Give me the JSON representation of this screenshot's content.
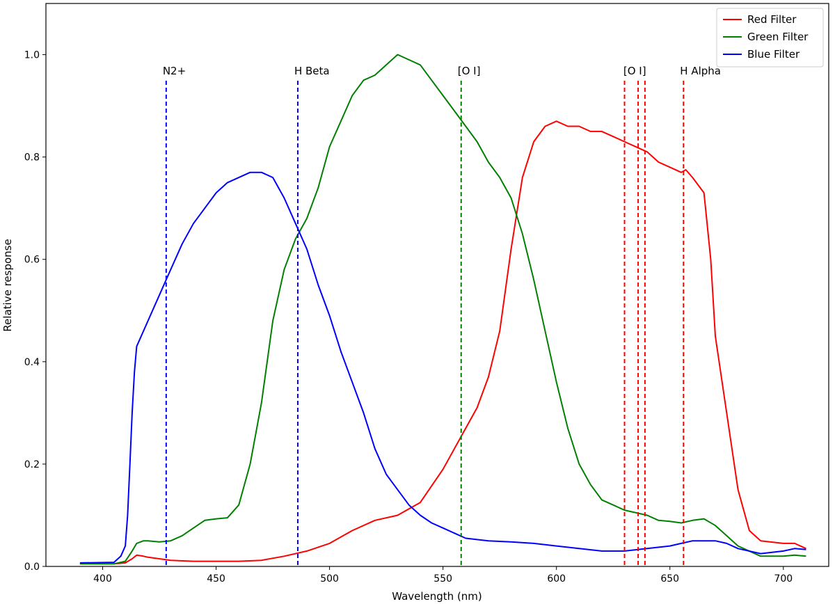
{
  "chart_data": {
    "type": "line",
    "title": "",
    "xlabel": "Wavelength (nm)",
    "ylabel": "Relative response",
    "xlim": [
      375,
      720
    ],
    "ylim": [
      0,
      1.1
    ],
    "x_ticks": [
      400,
      450,
      500,
      550,
      600,
      650,
      700
    ],
    "x_tick_labels": [
      "400",
      "450",
      "500",
      "550",
      "600",
      "650",
      "700"
    ],
    "y_ticks": [
      0.0,
      0.2,
      0.4,
      0.6,
      0.8,
      1.0
    ],
    "y_tick_labels": [
      "0.0",
      "0.2",
      "0.4",
      "0.6",
      "0.8",
      "1.0"
    ],
    "grid": false,
    "legend_position": "top-right",
    "series": [
      {
        "name": "Red Filter",
        "color": "#ff0000",
        "x": [
          390,
          405,
          410,
          413,
          415,
          418,
          420,
          425,
          430,
          440,
          450,
          460,
          470,
          480,
          490,
          500,
          510,
          520,
          530,
          540,
          550,
          555,
          560,
          565,
          570,
          575,
          580,
          585,
          590,
          595,
          600,
          605,
          610,
          615,
          620,
          625,
          630,
          635,
          640,
          645,
          650,
          655,
          657,
          660,
          665,
          668,
          670,
          675,
          680,
          685,
          690,
          700,
          705,
          710
        ],
        "y": [
          0.005,
          0.005,
          0.007,
          0.015,
          0.022,
          0.02,
          0.018,
          0.015,
          0.012,
          0.01,
          0.01,
          0.01,
          0.012,
          0.02,
          0.03,
          0.045,
          0.07,
          0.09,
          0.1,
          0.125,
          0.19,
          0.23,
          0.27,
          0.31,
          0.37,
          0.46,
          0.62,
          0.76,
          0.83,
          0.86,
          0.87,
          0.86,
          0.86,
          0.85,
          0.85,
          0.84,
          0.83,
          0.82,
          0.81,
          0.79,
          0.78,
          0.77,
          0.775,
          0.76,
          0.73,
          0.6,
          0.45,
          0.3,
          0.15,
          0.07,
          0.05,
          0.045,
          0.045,
          0.035
        ]
      },
      {
        "name": "Green Filter",
        "color": "#008000",
        "x": [
          390,
          405,
          410,
          413,
          415,
          418,
          420,
          425,
          430,
          435,
          440,
          445,
          450,
          455,
          460,
          465,
          470,
          475,
          480,
          485,
          490,
          495,
          500,
          505,
          510,
          515,
          520,
          525,
          530,
          535,
          540,
          545,
          550,
          555,
          560,
          565,
          570,
          575,
          580,
          585,
          590,
          595,
          600,
          605,
          610,
          615,
          620,
          625,
          630,
          640,
          645,
          650,
          655,
          660,
          665,
          670,
          675,
          680,
          690,
          700,
          705,
          710
        ],
        "y": [
          0.005,
          0.005,
          0.01,
          0.03,
          0.045,
          0.05,
          0.05,
          0.048,
          0.05,
          0.06,
          0.075,
          0.09,
          0.093,
          0.095,
          0.12,
          0.2,
          0.32,
          0.48,
          0.58,
          0.64,
          0.68,
          0.74,
          0.82,
          0.87,
          0.92,
          0.95,
          0.96,
          0.98,
          1.0,
          0.99,
          0.98,
          0.95,
          0.92,
          0.89,
          0.86,
          0.83,
          0.79,
          0.76,
          0.72,
          0.65,
          0.56,
          0.46,
          0.36,
          0.27,
          0.2,
          0.16,
          0.13,
          0.12,
          0.11,
          0.1,
          0.09,
          0.088,
          0.085,
          0.09,
          0.093,
          0.08,
          0.06,
          0.04,
          0.02,
          0.02,
          0.022,
          0.02
        ]
      },
      {
        "name": "Blue Filter",
        "color": "#0000ff",
        "x": [
          390,
          405,
          408,
          410,
          411,
          412,
          413,
          414,
          415,
          420,
          425,
          430,
          435,
          440,
          445,
          450,
          455,
          460,
          465,
          470,
          475,
          480,
          485,
          490,
          495,
          500,
          505,
          510,
          515,
          520,
          525,
          530,
          535,
          540,
          545,
          550,
          555,
          560,
          570,
          580,
          590,
          600,
          610,
          620,
          630,
          640,
          650,
          655,
          660,
          665,
          670,
          675,
          680,
          690,
          700,
          705,
          710
        ],
        "y": [
          0.007,
          0.008,
          0.02,
          0.04,
          0.1,
          0.2,
          0.3,
          0.38,
          0.43,
          0.48,
          0.53,
          0.58,
          0.63,
          0.67,
          0.7,
          0.73,
          0.75,
          0.76,
          0.77,
          0.77,
          0.76,
          0.72,
          0.67,
          0.62,
          0.55,
          0.49,
          0.42,
          0.36,
          0.3,
          0.23,
          0.18,
          0.15,
          0.12,
          0.1,
          0.085,
          0.075,
          0.065,
          0.055,
          0.05,
          0.048,
          0.045,
          0.04,
          0.035,
          0.03,
          0.03,
          0.035,
          0.04,
          0.045,
          0.05,
          0.05,
          0.05,
          0.045,
          0.035,
          0.025,
          0.03,
          0.035,
          0.033
        ]
      }
    ],
    "annotations": [
      {
        "label": "N2+",
        "lines": [
          428
        ],
        "color": "#0000ff"
      },
      {
        "label": "H Beta",
        "lines": [
          486
        ],
        "color": "#0000ff"
      },
      {
        "label": "[O I]",
        "lines": [
          558
        ],
        "color": "#008000"
      },
      {
        "label": "[O I]",
        "lines": [
          630,
          636,
          639
        ],
        "color": "#ff0000"
      },
      {
        "label": "H Alpha",
        "lines": [
          656
        ],
        "color": "#ff0000"
      }
    ]
  }
}
